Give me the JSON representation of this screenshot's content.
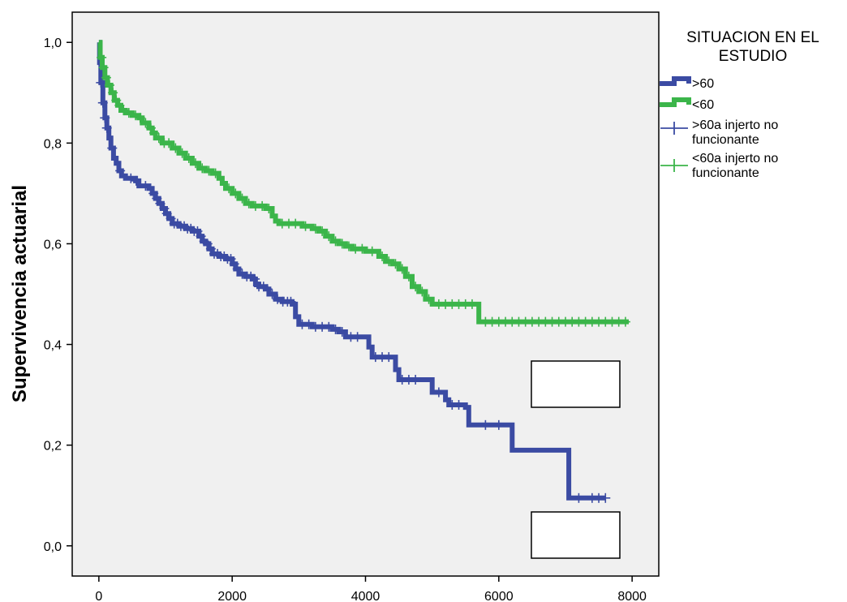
{
  "chart_data": {
    "type": "line",
    "title": "",
    "xlabel": "",
    "ylabel": "Supervivencia actuarial",
    "xlim": [
      -400,
      8400
    ],
    "ylim": [
      -0.06,
      1.06
    ],
    "x_ticks": [
      0,
      2000,
      4000,
      6000,
      8000
    ],
    "x_tick_labels": [
      "0",
      "2000",
      "4000",
      "6000",
      "8000"
    ],
    "y_ticks": [
      0.0,
      0.2,
      0.4,
      0.6,
      0.8,
      1.0
    ],
    "y_tick_labels": [
      "0,0",
      "0,2",
      "0,4",
      "0,6",
      "0,8",
      "1,0"
    ],
    "grid": false,
    "background": "#f0f0f0",
    "legend": {
      "title": [
        "SITUACION EN EL",
        "ESTUDIO"
      ],
      "placement": "right-outside",
      "entries": [
        {
          "label": ">60",
          "kind": "line",
          "color": "#3b4ba3"
        },
        {
          "label": "<60",
          "kind": "line",
          "color": "#3bb54a"
        },
        {
          "label": [
            ">60a injerto no",
            "funcionante"
          ],
          "kind": "censor",
          "color": "#3b4ba3"
        },
        {
          "label": [
            "<60a injerto no",
            "funcionante"
          ],
          "kind": "censor",
          "color": "#3bb54a"
        }
      ]
    },
    "series": [
      {
        "name": ">60",
        "color": "#3b4ba3",
        "points": [
          [
            0,
            1.0
          ],
          [
            10,
            0.96
          ],
          [
            30,
            0.92
          ],
          [
            60,
            0.88
          ],
          [
            90,
            0.85
          ],
          [
            120,
            0.83
          ],
          [
            150,
            0.81
          ],
          [
            180,
            0.79
          ],
          [
            220,
            0.77
          ],
          [
            260,
            0.76
          ],
          [
            300,
            0.745
          ],
          [
            340,
            0.735
          ],
          [
            400,
            0.73
          ],
          [
            550,
            0.725
          ],
          [
            600,
            0.715
          ],
          [
            750,
            0.71
          ],
          [
            800,
            0.7
          ],
          [
            850,
            0.69
          ],
          [
            900,
            0.68
          ],
          [
            950,
            0.67
          ],
          [
            1000,
            0.66
          ],
          [
            1050,
            0.65
          ],
          [
            1100,
            0.64
          ],
          [
            1200,
            0.635
          ],
          [
            1300,
            0.63
          ],
          [
            1400,
            0.625
          ],
          [
            1500,
            0.615
          ],
          [
            1550,
            0.605
          ],
          [
            1600,
            0.6
          ],
          [
            1650,
            0.59
          ],
          [
            1700,
            0.58
          ],
          [
            1800,
            0.575
          ],
          [
            1900,
            0.57
          ],
          [
            2000,
            0.56
          ],
          [
            2050,
            0.55
          ],
          [
            2100,
            0.54
          ],
          [
            2200,
            0.535
          ],
          [
            2300,
            0.53
          ],
          [
            2350,
            0.52
          ],
          [
            2400,
            0.515
          ],
          [
            2500,
            0.51
          ],
          [
            2550,
            0.5
          ],
          [
            2650,
            0.49
          ],
          [
            2750,
            0.485
          ],
          [
            2900,
            0.48
          ],
          [
            2950,
            0.455
          ],
          [
            3000,
            0.44
          ],
          [
            3100,
            0.44
          ],
          [
            3200,
            0.435
          ],
          [
            3500,
            0.43
          ],
          [
            3600,
            0.425
          ],
          [
            3700,
            0.415
          ],
          [
            4000,
            0.415
          ],
          [
            4050,
            0.395
          ],
          [
            4100,
            0.375
          ],
          [
            4400,
            0.375
          ],
          [
            4450,
            0.35
          ],
          [
            4500,
            0.33
          ],
          [
            4600,
            0.33
          ],
          [
            5000,
            0.305
          ],
          [
            5200,
            0.29
          ],
          [
            5250,
            0.28
          ],
          [
            5500,
            0.275
          ],
          [
            5550,
            0.24
          ],
          [
            6150,
            0.24
          ],
          [
            6200,
            0.19
          ],
          [
            7000,
            0.19
          ],
          [
            7050,
            0.095
          ],
          [
            7600,
            0.095
          ]
        ],
        "censored": [
          30,
          60,
          90,
          120,
          200,
          320,
          480,
          560,
          700,
          820,
          870,
          920,
          980,
          1020,
          1080,
          1130,
          1180,
          1230,
          1280,
          1330,
          1380,
          1430,
          1480,
          1530,
          1580,
          1630,
          1680,
          1730,
          1780,
          1830,
          1880,
          1930,
          1980,
          2030,
          2080,
          2150,
          2220,
          2280,
          2340,
          2400,
          2470,
          2530,
          2600,
          2680,
          2760,
          2830,
          2880,
          3050,
          3150,
          3250,
          3350,
          3450,
          3550,
          3650,
          3780,
          3880,
          4150,
          4250,
          4350,
          4550,
          4650,
          4750,
          5100,
          5300,
          5400,
          5800,
          6000,
          7200,
          7400,
          7500,
          7600
        ]
      },
      {
        "name": "<60",
        "color": "#3bb54a",
        "points": [
          [
            0,
            1.0
          ],
          [
            20,
            0.97
          ],
          [
            50,
            0.95
          ],
          [
            90,
            0.93
          ],
          [
            130,
            0.915
          ],
          [
            180,
            0.9
          ],
          [
            230,
            0.885
          ],
          [
            280,
            0.875
          ],
          [
            330,
            0.865
          ],
          [
            400,
            0.86
          ],
          [
            500,
            0.855
          ],
          [
            600,
            0.85
          ],
          [
            650,
            0.84
          ],
          [
            750,
            0.83
          ],
          [
            800,
            0.82
          ],
          [
            850,
            0.81
          ],
          [
            950,
            0.8
          ],
          [
            1100,
            0.79
          ],
          [
            1200,
            0.78
          ],
          [
            1300,
            0.77
          ],
          [
            1400,
            0.76
          ],
          [
            1500,
            0.75
          ],
          [
            1600,
            0.745
          ],
          [
            1700,
            0.74
          ],
          [
            1800,
            0.73
          ],
          [
            1850,
            0.72
          ],
          [
            1900,
            0.71
          ],
          [
            2000,
            0.7
          ],
          [
            2100,
            0.69
          ],
          [
            2200,
            0.68
          ],
          [
            2300,
            0.675
          ],
          [
            2500,
            0.67
          ],
          [
            2600,
            0.655
          ],
          [
            2650,
            0.645
          ],
          [
            2700,
            0.64
          ],
          [
            3000,
            0.64
          ],
          [
            3050,
            0.635
          ],
          [
            3200,
            0.63
          ],
          [
            3300,
            0.625
          ],
          [
            3400,
            0.615
          ],
          [
            3500,
            0.605
          ],
          [
            3600,
            0.6
          ],
          [
            3700,
            0.595
          ],
          [
            3800,
            0.59
          ],
          [
            4000,
            0.585
          ],
          [
            4200,
            0.575
          ],
          [
            4300,
            0.565
          ],
          [
            4400,
            0.56
          ],
          [
            4500,
            0.55
          ],
          [
            4600,
            0.535
          ],
          [
            4700,
            0.515
          ],
          [
            4800,
            0.505
          ],
          [
            4900,
            0.49
          ],
          [
            5000,
            0.48
          ],
          [
            5650,
            0.48
          ],
          [
            5700,
            0.445
          ],
          [
            7950,
            0.445
          ]
        ],
        "censored": [
          40,
          70,
          110,
          160,
          210,
          260,
          310,
          370,
          450,
          550,
          620,
          700,
          780,
          830,
          900,
          980,
          1050,
          1150,
          1250,
          1350,
          1450,
          1550,
          1650,
          1750,
          1950,
          2050,
          2150,
          2250,
          2350,
          2450,
          2550,
          2750,
          2850,
          2950,
          3100,
          3250,
          3350,
          3450,
          3550,
          3650,
          3750,
          3850,
          3950,
          4100,
          4250,
          4350,
          4450,
          4550,
          4650,
          4750,
          4850,
          4950,
          5100,
          5200,
          5300,
          5400,
          5500,
          5600,
          5800,
          5900,
          6000,
          6100,
          6200,
          6300,
          6400,
          6500,
          6600,
          6700,
          6800,
          6900,
          7000,
          7100,
          7200,
          7300,
          7400,
          7500,
          7600,
          7700,
          7800,
          7900
        ]
      }
    ],
    "annotations": [
      "blank-box",
      "blank-box"
    ]
  }
}
